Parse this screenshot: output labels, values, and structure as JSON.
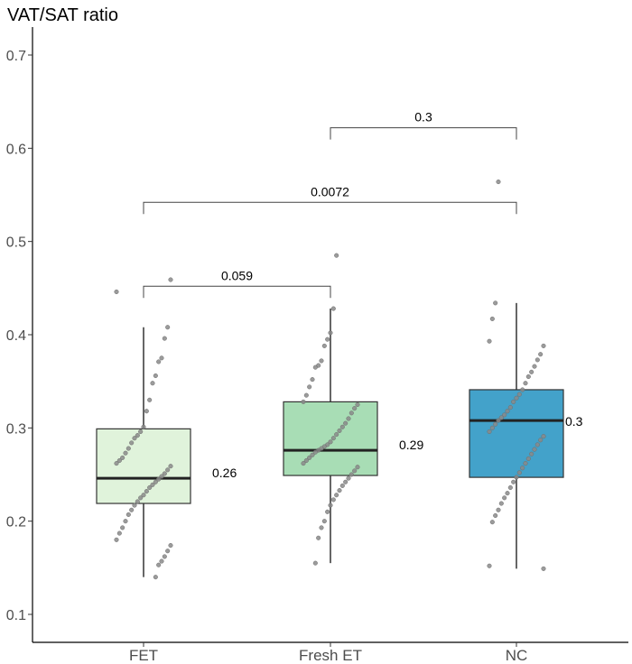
{
  "chart_data": {
    "type": "boxplot",
    "title": "",
    "ylabel": "VAT/SAT ratio",
    "xlabel": "",
    "ylim": [
      0.07,
      0.73
    ],
    "yticks": [
      0.1,
      0.2,
      0.3,
      0.4,
      0.5,
      0.6,
      0.7
    ],
    "categories": [
      "FET",
      "Fresh ET",
      "NC"
    ],
    "colors": [
      "#e0f3db",
      "#a8ddb5",
      "#43a2ca"
    ],
    "boxes": [
      {
        "name": "FET",
        "whisker_low": 0.14,
        "q1": 0.219,
        "median": 0.246,
        "q3": 0.299,
        "whisker_high": 0.408,
        "label": "0.26"
      },
      {
        "name": "Fresh ET",
        "whisker_low": 0.155,
        "q1": 0.249,
        "median": 0.276,
        "q3": 0.328,
        "whisker_high": 0.428,
        "label": "0.29"
      },
      {
        "name": "NC",
        "whisker_low": 0.149,
        "q1": 0.247,
        "median": 0.308,
        "q3": 0.341,
        "whisker_high": 0.434,
        "label": "0.3"
      }
    ],
    "points": [
      [
        0.446,
        0.459,
        0.408,
        0.396,
        0.375,
        0.371,
        0.356,
        0.348,
        0.33,
        0.318,
        0.301,
        0.296,
        0.292,
        0.289,
        0.284,
        0.278,
        0.273,
        0.268,
        0.265,
        0.262,
        0.259,
        0.255,
        0.251,
        0.248,
        0.245,
        0.242,
        0.239,
        0.236,
        0.232,
        0.228,
        0.225,
        0.221,
        0.217,
        0.212,
        0.207,
        0.2,
        0.193,
        0.187,
        0.18,
        0.174,
        0.168,
        0.162,
        0.157,
        0.153,
        0.14
      ],
      [
        0.485,
        0.428,
        0.402,
        0.395,
        0.388,
        0.372,
        0.367,
        0.365,
        0.352,
        0.344,
        0.335,
        0.328,
        0.325,
        0.321,
        0.316,
        0.31,
        0.305,
        0.301,
        0.297,
        0.293,
        0.289,
        0.285,
        0.282,
        0.28,
        0.278,
        0.276,
        0.274,
        0.271,
        0.268,
        0.265,
        0.262,
        0.258,
        0.254,
        0.25,
        0.246,
        0.242,
        0.238,
        0.233,
        0.228,
        0.223,
        0.217,
        0.21,
        0.2,
        0.193,
        0.182,
        0.155
      ],
      [
        0.564,
        0.434,
        0.417,
        0.393,
        0.388,
        0.379,
        0.373,
        0.366,
        0.36,
        0.355,
        0.348,
        0.341,
        0.336,
        0.332,
        0.328,
        0.322,
        0.318,
        0.314,
        0.311,
        0.308,
        0.304,
        0.3,
        0.296,
        0.291,
        0.287,
        0.282,
        0.277,
        0.272,
        0.267,
        0.262,
        0.257,
        0.252,
        0.247,
        0.242,
        0.236,
        0.23,
        0.225,
        0.219,
        0.212,
        0.206,
        0.199,
        0.152,
        0.149
      ]
    ],
    "comparisons": [
      {
        "from": "FET",
        "to": "Fresh ET",
        "y": 0.452,
        "label": "0.059"
      },
      {
        "from": "FET",
        "to": "NC",
        "y": 0.542,
        "label": "0.0072"
      },
      {
        "from": "Fresh ET",
        "to": "NC",
        "y": 0.622,
        "label": "0.3"
      }
    ]
  }
}
